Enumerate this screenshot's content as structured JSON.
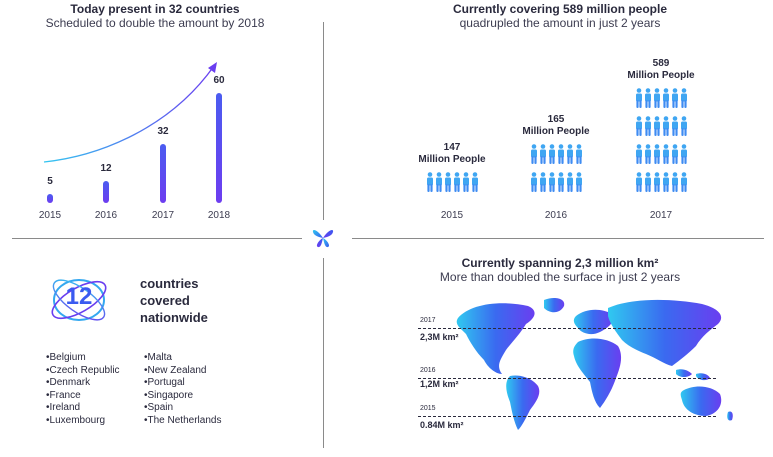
{
  "top_left": {
    "title": "Today present in 32 countries",
    "subtitle": "Scheduled to double the amount by 2018",
    "chart_data": {
      "type": "bar",
      "categories": [
        "2015",
        "2016",
        "2017",
        "2018"
      ],
      "values": [
        5,
        12,
        32,
        60
      ],
      "title": "",
      "xlabel": "",
      "ylabel": ""
    }
  },
  "top_right": {
    "title": "Currently covering 589 million people",
    "subtitle": "quadrupled  the amount in just 2 years",
    "groups": [
      {
        "value": "147",
        "unit": "Million People",
        "year": "2015",
        "rows": 1
      },
      {
        "value": "165",
        "unit": "Million People",
        "year": "2016",
        "rows": 2
      },
      {
        "value": "589",
        "unit": "Million People",
        "year": "2017",
        "rows": 4
      }
    ]
  },
  "bottom_left": {
    "count": "12",
    "heading": [
      "countries",
      "covered",
      "nationwide"
    ],
    "countries_col1": [
      "Belgium",
      "Czech Republic",
      "Denmark",
      "France",
      "Ireland",
      "Luxembourg"
    ],
    "countries_col2": [
      "Malta",
      "New Zealand",
      "Portugal",
      "Singapore",
      "Spain",
      "The Netherlands"
    ]
  },
  "bottom_right": {
    "title": "Currently spanning 2,3 million km²",
    "subtitle": "More than doubled the surface in just 2 years",
    "levels": [
      {
        "year": "2017",
        "value": "2,3M km²"
      },
      {
        "year": "2016",
        "value": "1,2M km²"
      },
      {
        "year": "2015",
        "value": "0.84M km²"
      }
    ]
  },
  "colors": {
    "accent_blue": "#3f8cf2",
    "accent_purple": "#6a3ef0",
    "cyan": "#34c6f0"
  },
  "icons": {
    "center_logo": "butterfly-logo-icon",
    "person": "person-icon"
  }
}
